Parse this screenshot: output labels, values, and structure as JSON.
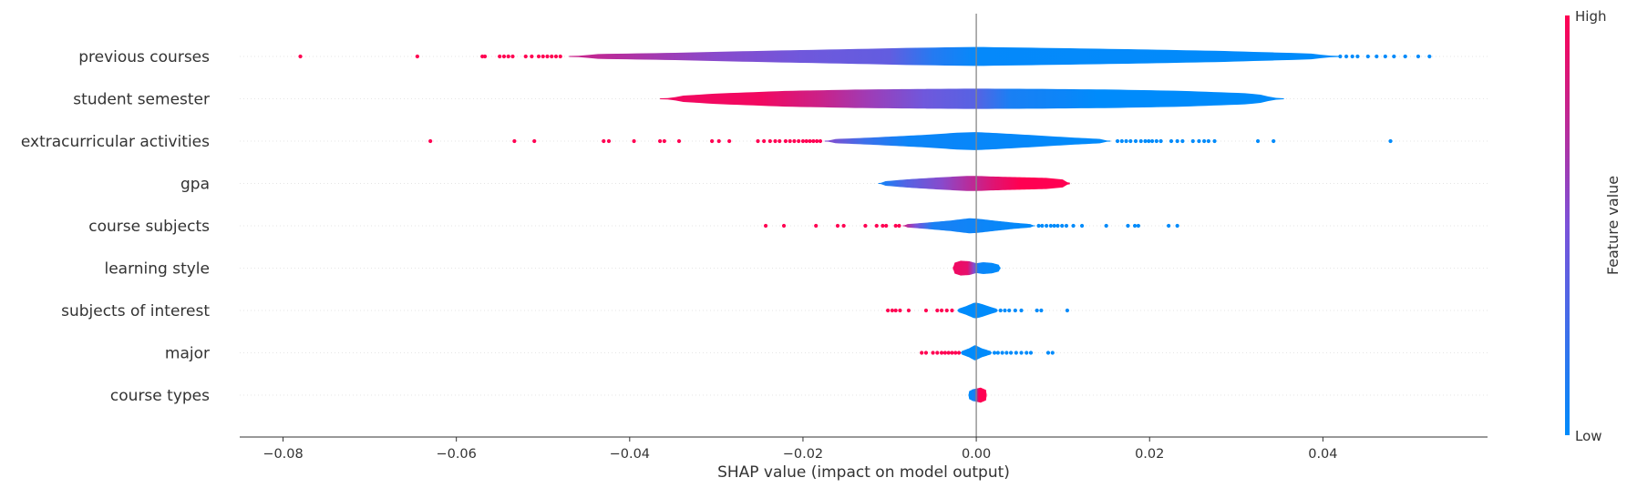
{
  "chart_data": {
    "type": "violin",
    "title": "",
    "xlabel": "SHAP value (impact on model output)",
    "ylabel": "",
    "xlim": [
      -0.085,
      0.059
    ],
    "xticks": [
      -0.08,
      -0.06,
      -0.04,
      -0.02,
      0.0,
      0.02,
      0.04
    ],
    "xtick_labels": [
      "−0.08",
      "−0.06",
      "−0.04",
      "−0.02",
      "0.00",
      "0.02",
      "0.04"
    ],
    "grid": false,
    "colorbar": {
      "label": "Feature value",
      "high_label": "High",
      "low_label": "Low",
      "low_color": "#008bfb",
      "mid_color": "#7b52d9",
      "high_color": "#ff0052"
    },
    "features": [
      {
        "name": "previous courses",
        "violin_min": -0.047,
        "violin_max": 0.042,
        "profile": [
          [
            -0.047,
            0.12
          ],
          [
            -0.035,
            0.22
          ],
          [
            -0.025,
            0.34
          ],
          [
            -0.015,
            0.44
          ],
          [
            -0.008,
            0.52
          ],
          [
            0.0,
            0.58
          ],
          [
            0.008,
            0.52
          ],
          [
            0.018,
            0.44
          ],
          [
            0.028,
            0.34
          ],
          [
            0.036,
            0.22
          ],
          [
            0.042,
            0.12
          ]
        ],
        "color_profile": [
          [
            -0.047,
            0.8
          ],
          [
            -0.03,
            0.55
          ],
          [
            -0.02,
            0.45
          ],
          [
            -0.01,
            0.4
          ],
          [
            -0.005,
            0.15
          ],
          [
            0.0,
            0.02
          ],
          [
            0.042,
            0.0
          ]
        ],
        "high_points": [
          -0.078,
          -0.0645,
          -0.057,
          -0.0567,
          -0.055,
          -0.0545,
          -0.054,
          -0.0535,
          -0.052,
          -0.0513,
          -0.0505,
          -0.05,
          -0.0495,
          -0.049,
          -0.0485,
          -0.048
        ],
        "low_points": [
          0.042,
          0.0427,
          0.0434,
          0.044,
          0.0452,
          0.0462,
          0.0472,
          0.0482,
          0.0495,
          0.051,
          0.0523
        ]
      },
      {
        "name": "student semester",
        "violin_min": -0.0365,
        "violin_max": 0.0355,
        "profile": [
          [
            -0.0365,
            0.1
          ],
          [
            -0.03,
            0.32
          ],
          [
            -0.022,
            0.48
          ],
          [
            -0.014,
            0.56
          ],
          [
            -0.006,
            0.6
          ],
          [
            0.0,
            0.62
          ],
          [
            0.008,
            0.6
          ],
          [
            0.016,
            0.56
          ],
          [
            0.024,
            0.48
          ],
          [
            0.031,
            0.34
          ],
          [
            0.0355,
            0.12
          ]
        ],
        "color_profile": [
          [
            -0.0365,
            0.95
          ],
          [
            -0.025,
            0.95
          ],
          [
            -0.018,
            0.8
          ],
          [
            -0.012,
            0.62
          ],
          [
            -0.006,
            0.45
          ],
          [
            0.0,
            0.35
          ],
          [
            0.004,
            0.1
          ],
          [
            0.01,
            0.05
          ],
          [
            0.014,
            0.0
          ],
          [
            0.0355,
            0.0
          ]
        ],
        "high_points": [],
        "low_points": []
      },
      {
        "name": "extracurricular activities",
        "violin_min": -0.0175,
        "violin_max": 0.0155,
        "profile": [
          [
            -0.0175,
            0.1
          ],
          [
            -0.012,
            0.22
          ],
          [
            -0.006,
            0.38
          ],
          [
            -0.002,
            0.52
          ],
          [
            0.0,
            0.55
          ],
          [
            0.002,
            0.5
          ],
          [
            0.006,
            0.38
          ],
          [
            0.011,
            0.22
          ],
          [
            0.0155,
            0.1
          ]
        ],
        "color_profile": [
          [
            -0.0175,
            0.55
          ],
          [
            -0.013,
            0.25
          ],
          [
            -0.008,
            0.05
          ],
          [
            0.0155,
            0.0
          ]
        ],
        "high_points": [
          -0.063,
          -0.0533,
          -0.051,
          -0.043,
          -0.0424,
          -0.0395,
          -0.0365,
          -0.036,
          -0.0343,
          -0.0305,
          -0.0297,
          -0.0285,
          -0.0252,
          -0.0245,
          -0.0238,
          -0.0232,
          -0.0227,
          -0.022,
          -0.0215,
          -0.021,
          -0.0205,
          -0.02,
          -0.0196,
          -0.0192,
          -0.0188,
          -0.0184,
          -0.018
        ],
        "low_points": [
          0.0163,
          0.0168,
          0.0173,
          0.0178,
          0.0184,
          0.019,
          0.0195,
          0.0199,
          0.0203,
          0.0208,
          0.0213,
          0.0225,
          0.0232,
          0.0238,
          0.025,
          0.0257,
          0.0263,
          0.0268,
          0.0275,
          0.0325,
          0.0343,
          0.0478
        ]
      },
      {
        "name": "gpa",
        "violin_min": -0.0113,
        "violin_max": 0.0108,
        "profile": [
          [
            -0.0113,
            0.1
          ],
          [
            -0.008,
            0.25
          ],
          [
            -0.004,
            0.38
          ],
          [
            -0.001,
            0.46
          ],
          [
            0.0,
            0.46
          ],
          [
            0.002,
            0.42
          ],
          [
            0.005,
            0.38
          ],
          [
            0.008,
            0.34
          ],
          [
            0.0108,
            0.2
          ]
        ],
        "color_profile": [
          [
            -0.0113,
            0.05
          ],
          [
            -0.008,
            0.35
          ],
          [
            -0.004,
            0.55
          ],
          [
            -0.001,
            0.72
          ],
          [
            0.002,
            0.88
          ],
          [
            0.005,
            1.0
          ],
          [
            0.0108,
            1.0
          ]
        ],
        "high_points": [],
        "low_points": []
      },
      {
        "name": "course subjects",
        "violin_min": -0.0085,
        "violin_max": 0.0068,
        "profile": [
          [
            -0.0085,
            0.08
          ],
          [
            -0.006,
            0.18
          ],
          [
            -0.003,
            0.32
          ],
          [
            -0.0008,
            0.46
          ],
          [
            0.0,
            0.44
          ],
          [
            0.002,
            0.32
          ],
          [
            0.0045,
            0.18
          ],
          [
            0.0068,
            0.08
          ]
        ],
        "color_profile": [
          [
            -0.0085,
            0.85
          ],
          [
            -0.007,
            0.5
          ],
          [
            -0.005,
            0.1
          ],
          [
            0.0068,
            0.0
          ]
        ],
        "high_points": [
          -0.0243,
          -0.0222,
          -0.0185,
          -0.016,
          -0.0153,
          -0.0128,
          -0.0115,
          -0.0108,
          -0.0104,
          -0.0093,
          -0.0089
        ],
        "low_points": [
          0.0072,
          0.0076,
          0.0081,
          0.0086,
          0.009,
          0.0094,
          0.0099,
          0.0104,
          0.0112,
          0.0122,
          0.015,
          0.0175,
          0.0183,
          0.0187,
          0.0222,
          0.0232
        ]
      },
      {
        "name": "learning style",
        "violin_min": -0.0027,
        "violin_max": 0.0028,
        "profile": [
          [
            -0.0027,
            0.3
          ],
          [
            -0.0018,
            0.45
          ],
          [
            -0.0008,
            0.42
          ],
          [
            0.0,
            0.3
          ],
          [
            0.0008,
            0.36
          ],
          [
            0.0018,
            0.32
          ],
          [
            0.0028,
            0.18
          ]
        ],
        "color_profile": [
          [
            -0.0027,
            0.95
          ],
          [
            -0.001,
            0.9
          ],
          [
            -0.0003,
            0.55
          ],
          [
            0.0003,
            0.05
          ],
          [
            0.0028,
            0.0
          ]
        ],
        "high_points": [],
        "low_points": []
      },
      {
        "name": "subjects of interest",
        "violin_min": -0.0022,
        "violin_max": 0.0025,
        "profile": [
          [
            -0.0022,
            0.08
          ],
          [
            -0.0012,
            0.26
          ],
          [
            -0.0003,
            0.46
          ],
          [
            0.0,
            0.48
          ],
          [
            0.0006,
            0.4
          ],
          [
            0.0015,
            0.24
          ],
          [
            0.0025,
            0.08
          ]
        ],
        "color_profile": [
          [
            -0.0022,
            0.0
          ],
          [
            0.0025,
            0.0
          ]
        ],
        "high_points": [
          -0.0102,
          -0.0097,
          -0.0093,
          -0.0088,
          -0.0078,
          -0.0058,
          -0.0045,
          -0.004,
          -0.0034,
          -0.0028
        ],
        "low_points": [
          0.0028,
          0.0033,
          0.0038,
          0.0045,
          0.0052,
          0.007,
          0.0075,
          0.0105
        ]
      },
      {
        "name": "major",
        "violin_min": -0.0018,
        "violin_max": 0.0018,
        "profile": [
          [
            -0.0018,
            0.08
          ],
          [
            -0.0008,
            0.28
          ],
          [
            -0.0002,
            0.46
          ],
          [
            0.0,
            0.44
          ],
          [
            0.0006,
            0.28
          ],
          [
            0.0018,
            0.08
          ]
        ],
        "color_profile": [
          [
            -0.0018,
            0.0
          ],
          [
            0.0018,
            0.0
          ]
        ],
        "high_points": [
          -0.0063,
          -0.0058,
          -0.005,
          -0.0045,
          -0.004,
          -0.0036,
          -0.0032,
          -0.0028,
          -0.0024,
          -0.002
        ],
        "low_points": [
          0.0021,
          0.0025,
          0.003,
          0.0035,
          0.004,
          0.0046,
          0.0052,
          0.0058,
          0.0063,
          0.0083,
          0.0088
        ]
      },
      {
        "name": "course types",
        "violin_min": -0.0009,
        "violin_max": 0.0012,
        "profile": [
          [
            -0.0009,
            0.22
          ],
          [
            -0.0004,
            0.36
          ],
          [
            0.0,
            0.4
          ],
          [
            0.0005,
            0.46
          ],
          [
            0.0012,
            0.3
          ]
        ],
        "color_profile": [
          [
            -0.0009,
            0.0
          ],
          [
            -0.0002,
            0.1
          ],
          [
            0.0003,
            1.0
          ],
          [
            0.0012,
            1.0
          ]
        ],
        "high_points": [],
        "low_points": []
      }
    ]
  }
}
